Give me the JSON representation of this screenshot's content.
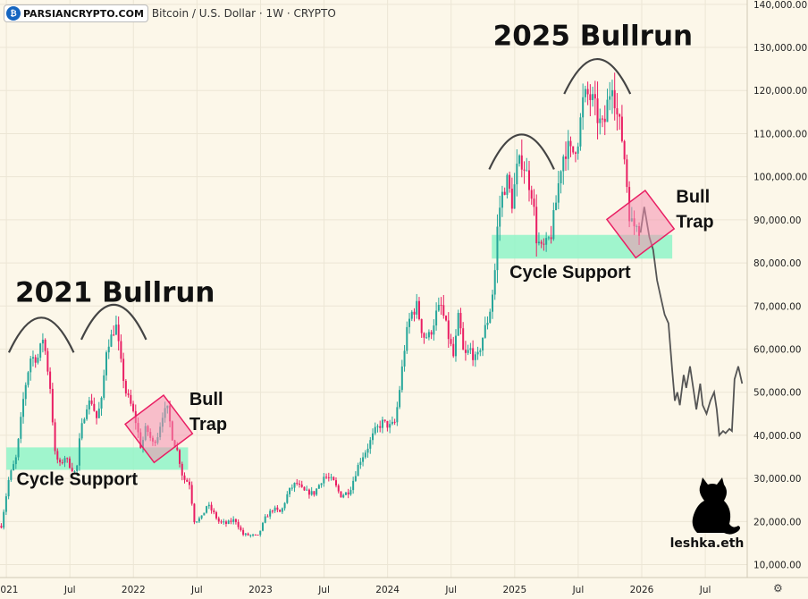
{
  "header": {
    "watermark": "PARSIANCRYPTO.COM",
    "symbol": "Bitcoin / U.S. Dollar · 1W · CRYPTO",
    "logo_icon": "parsiancrypto-logo-icon"
  },
  "chart_data": {
    "type": "candlestick",
    "series_name": "Bitcoin / U.S. Dollar",
    "interval": "1W",
    "y_axis": {
      "ticks": [
        "10,000.00",
        "20,000.00",
        "30,000.00",
        "40,000.00",
        "50,000.00",
        "60,000.00",
        "70,000.00",
        "80,000.00",
        "90,000.00",
        "100,000.00",
        "110,000.00",
        "120,000.00",
        "130,000.00",
        "140,000.00"
      ],
      "range": [
        7000,
        141000
      ],
      "position": "right"
    },
    "x_axis": {
      "ticks": [
        {
          "label": "2021",
          "t": 2021.0
        },
        {
          "label": "Jul",
          "t": 2021.5
        },
        {
          "label": "2022",
          "t": 2022.0
        },
        {
          "label": "Jul",
          "t": 2022.5
        },
        {
          "label": "2023",
          "t": 2023.0
        },
        {
          "label": "Jul",
          "t": 2023.5
        },
        {
          "label": "2024",
          "t": 2024.0
        },
        {
          "label": "Jul",
          "t": 2024.5
        },
        {
          "label": "2025",
          "t": 2025.0
        },
        {
          "label": "Jul",
          "t": 2025.5
        },
        {
          "label": "2026",
          "t": 2026.0
        },
        {
          "label": "Jul",
          "t": 2026.5
        }
      ],
      "range": [
        2020.95,
        2026.83
      ]
    },
    "grid": true,
    "colors": {
      "up": "#26a69a",
      "down": "#e91e63",
      "projection": "#555555",
      "support": "#8ff5c8",
      "trap": "#f48fb1",
      "trap_border": "#e91e63",
      "arc": "#444444"
    },
    "price_anchors": [
      [
        2020.96,
        19000
      ],
      [
        2021.02,
        30000
      ],
      [
        2021.08,
        35000
      ],
      [
        2021.14,
        50000
      ],
      [
        2021.19,
        58000
      ],
      [
        2021.25,
        58000
      ],
      [
        2021.29,
        63000
      ],
      [
        2021.35,
        50000
      ],
      [
        2021.38,
        36000
      ],
      [
        2021.42,
        33000
      ],
      [
        2021.46,
        35000
      ],
      [
        2021.5,
        33000
      ],
      [
        2021.55,
        31000
      ],
      [
        2021.58,
        40000
      ],
      [
        2021.63,
        47000
      ],
      [
        2021.67,
        48000
      ],
      [
        2021.71,
        44000
      ],
      [
        2021.75,
        48000
      ],
      [
        2021.79,
        61000
      ],
      [
        2021.83,
        63000
      ],
      [
        2021.86,
        66000
      ],
      [
        2021.9,
        57000
      ],
      [
        2021.94,
        50000
      ],
      [
        2021.98,
        47000
      ],
      [
        2022.02,
        43000
      ],
      [
        2022.06,
        37000
      ],
      [
        2022.1,
        42000
      ],
      [
        2022.15,
        38000
      ],
      [
        2022.19,
        40000
      ],
      [
        2022.23,
        45000
      ],
      [
        2022.27,
        46000
      ],
      [
        2022.31,
        39000
      ],
      [
        2022.35,
        36000
      ],
      [
        2022.39,
        30000
      ],
      [
        2022.44,
        29000
      ],
      [
        2022.48,
        20000
      ],
      [
        2022.54,
        21000
      ],
      [
        2022.58,
        24000
      ],
      [
        2022.63,
        22000
      ],
      [
        2022.67,
        20000
      ],
      [
        2022.73,
        19500
      ],
      [
        2022.8,
        20500
      ],
      [
        2022.86,
        17000
      ],
      [
        2022.92,
        16800
      ],
      [
        2022.98,
        16600
      ],
      [
        2023.04,
        21000
      ],
      [
        2023.1,
        23000
      ],
      [
        2023.16,
        22000
      ],
      [
        2023.22,
        27000
      ],
      [
        2023.28,
        29000
      ],
      [
        2023.34,
        27000
      ],
      [
        2023.42,
        26500
      ],
      [
        2023.5,
        30500
      ],
      [
        2023.57,
        29500
      ],
      [
        2023.63,
        26000
      ],
      [
        2023.7,
        27000
      ],
      [
        2023.78,
        34000
      ],
      [
        2023.84,
        37000
      ],
      [
        2023.9,
        41000
      ],
      [
        2023.96,
        43000
      ],
      [
        2024.02,
        42000
      ],
      [
        2024.06,
        43000
      ],
      [
        2024.1,
        52000
      ],
      [
        2024.14,
        62000
      ],
      [
        2024.18,
        68000
      ],
      [
        2024.23,
        70000
      ],
      [
        2024.28,
        63000
      ],
      [
        2024.33,
        63000
      ],
      [
        2024.38,
        68000
      ],
      [
        2024.42,
        70000
      ],
      [
        2024.47,
        64000
      ],
      [
        2024.52,
        58000
      ],
      [
        2024.56,
        68000
      ],
      [
        2024.6,
        58000
      ],
      [
        2024.65,
        60000
      ],
      [
        2024.7,
        57000
      ],
      [
        2024.75,
        63000
      ],
      [
        2024.8,
        68000
      ],
      [
        2024.84,
        76000
      ],
      [
        2024.87,
        91000
      ],
      [
        2024.91,
        97000
      ],
      [
        2024.94,
        99000
      ],
      [
        2024.98,
        94000
      ],
      [
        2025.02,
        102000
      ],
      [
        2025.06,
        104000
      ],
      [
        2025.1,
        100000
      ],
      [
        2025.14,
        96000
      ],
      [
        2025.17,
        86000
      ],
      [
        2025.21,
        83000
      ],
      [
        2025.25,
        84000
      ],
      [
        2025.29,
        87000
      ],
      [
        2025.33,
        95000
      ],
      [
        2025.37,
        104000
      ],
      [
        2025.41,
        107000
      ],
      [
        2025.45,
        105000
      ],
      [
        2025.5,
        109000
      ],
      [
        2025.54,
        118000
      ],
      [
        2025.58,
        119000
      ],
      [
        2025.62,
        117000
      ],
      [
        2025.66,
        113000
      ],
      [
        2025.7,
        111000
      ],
      [
        2025.73,
        117000
      ],
      [
        2025.77,
        123000
      ],
      [
        2025.8,
        115000
      ],
      [
        2025.84,
        110000
      ],
      [
        2025.87,
        103000
      ],
      [
        2025.9,
        92000
      ],
      [
        2025.93,
        88000
      ],
      [
        2025.96,
        90000
      ],
      [
        2025.99,
        87000
      ]
    ],
    "projection": [
      [
        2025.99,
        87000
      ],
      [
        2026.02,
        93000
      ],
      [
        2026.06,
        86000
      ],
      [
        2026.09,
        83000
      ],
      [
        2026.12,
        76000
      ],
      [
        2026.15,
        72000
      ],
      [
        2026.18,
        68000
      ],
      [
        2026.21,
        66000
      ],
      [
        2026.24,
        55000
      ],
      [
        2026.26,
        48000
      ],
      [
        2026.28,
        50000
      ],
      [
        2026.3,
        47000
      ],
      [
        2026.33,
        54000
      ],
      [
        2026.35,
        51000
      ],
      [
        2026.38,
        56000
      ],
      [
        2026.41,
        50000
      ],
      [
        2026.43,
        46000
      ],
      [
        2026.46,
        52000
      ],
      [
        2026.48,
        47000
      ],
      [
        2026.51,
        45000
      ],
      [
        2026.54,
        48000
      ],
      [
        2026.57,
        50000
      ],
      [
        2026.59,
        46000
      ],
      [
        2026.61,
        40000
      ],
      [
        2026.64,
        41000
      ],
      [
        2026.66,
        40500
      ],
      [
        2026.69,
        41500
      ],
      [
        2026.71,
        41000
      ],
      [
        2026.73,
        53000
      ],
      [
        2026.76,
        56000
      ],
      [
        2026.79,
        52000
      ]
    ],
    "annotations": {
      "titles": [
        {
          "text": "2021  Bullrun",
          "t": 2021.07,
          "y": 71000
        },
        {
          "text": "2025 Bullrun",
          "t": 2024.83,
          "y": 130500
        }
      ],
      "support_zones": [
        {
          "label": "Cycle Support",
          "t1": 2021.0,
          "t2": 2022.43,
          "y1": 32000,
          "y2": 37200,
          "label_t": 2021.08,
          "label_y": 28500
        },
        {
          "label": "Cycle Support",
          "t1": 2024.82,
          "t2": 2026.24,
          "y1": 81000,
          "y2": 86500,
          "label_t": 2024.96,
          "label_y": 76500
        }
      ],
      "bull_traps": [
        {
          "label1": "Bull",
          "label2": "Trap",
          "ct": 2022.2,
          "cy": 41500,
          "label_t": 2022.44,
          "label_y": 47000
        },
        {
          "label1": "Bull",
          "label2": "Trap",
          "ct": 2025.99,
          "cy": 89000,
          "label_t": 2026.27,
          "label_y": 94000
        }
      ],
      "arcs": [
        {
          "t1": 2021.02,
          "t2": 2021.53,
          "top": 67500
        },
        {
          "t1": 2021.59,
          "t2": 2022.1,
          "top": 70500
        },
        {
          "t1": 2024.8,
          "t2": 2025.31,
          "top": 110000
        },
        {
          "t1": 2025.39,
          "t2": 2025.91,
          "top": 127500
        }
      ]
    }
  },
  "brand": {
    "cat_icon": "black-cat-icon",
    "signature": "leshka.eth"
  },
  "settings_icon": "gear-icon",
  "settings_glyph": "⚙"
}
